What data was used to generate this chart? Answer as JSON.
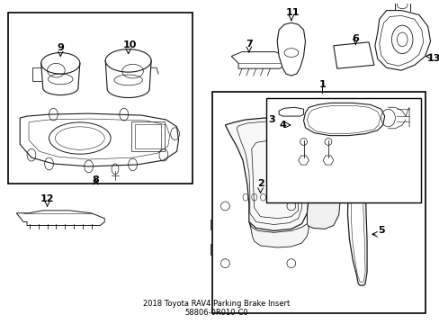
{
  "title": "2018 Toyota RAV4 Parking Brake Insert\n58806-0R010-C0",
  "bg_color": "#ffffff",
  "line_color": "#1a1a1a",
  "fig_width": 4.89,
  "fig_height": 3.6,
  "dpi": 100
}
